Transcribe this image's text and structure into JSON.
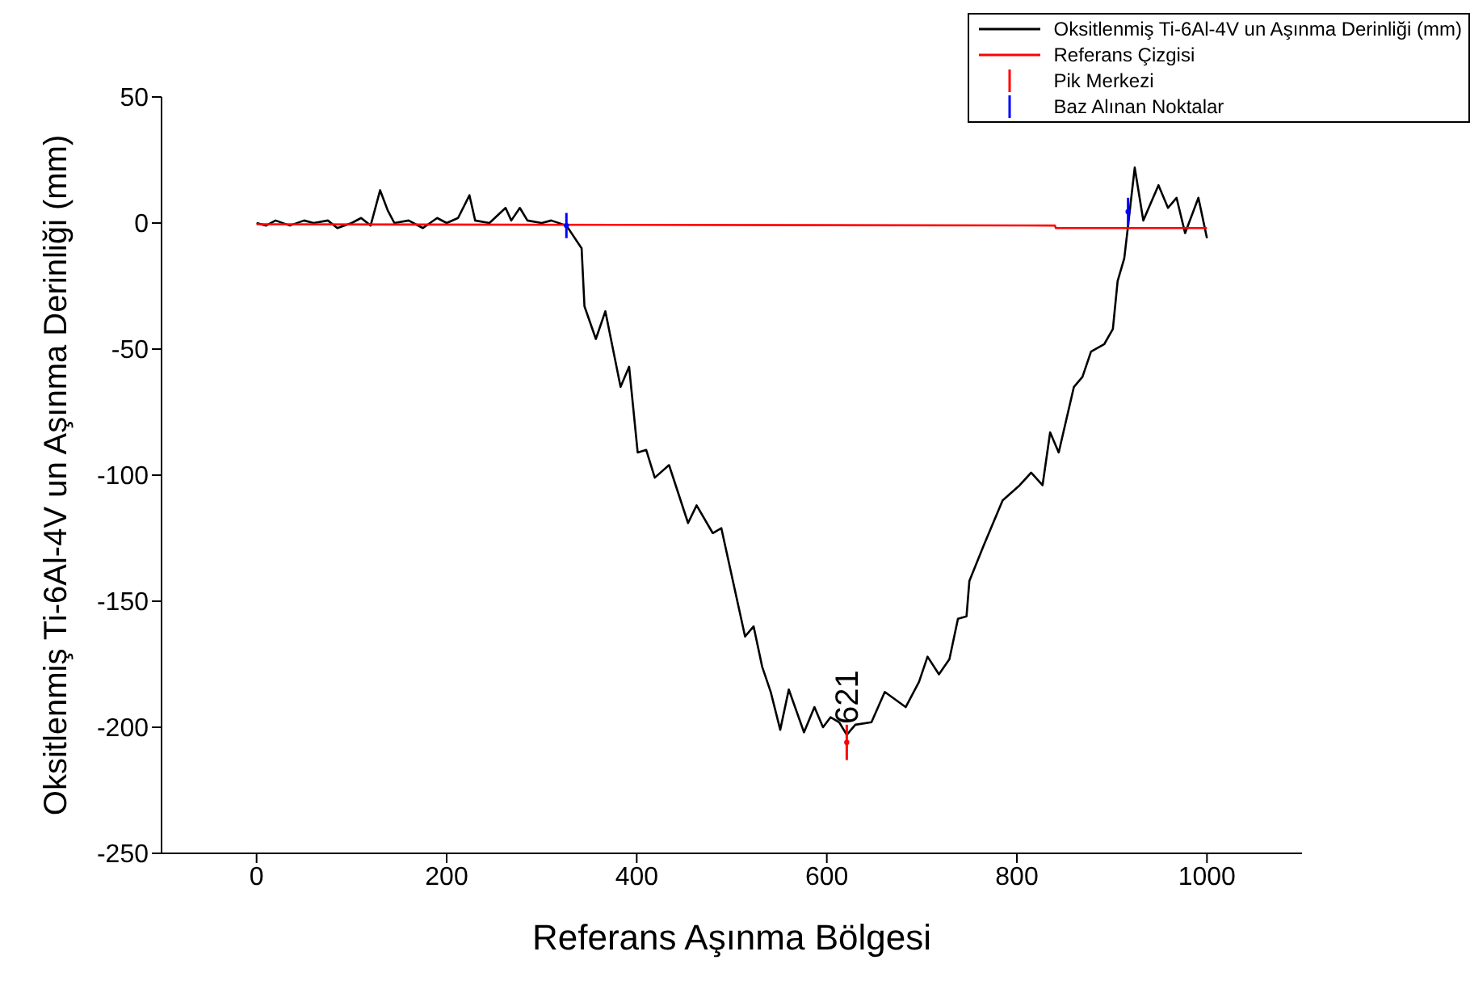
{
  "chart_data": {
    "type": "line",
    "xlabel": "Referans Aşınma Bölgesi",
    "ylabel": "Oksitlenmiş Ti-6Al-4V un Aşınma Derinliği (mm)",
    "xlim": [
      -100,
      1100
    ],
    "xticks": [
      0,
      200,
      400,
      600,
      800,
      1000
    ],
    "ylim": [
      -250,
      50
    ],
    "yticks": [
      50,
      0,
      -50,
      -100,
      -150,
      -200,
      -250
    ],
    "grid": false,
    "legend": "top right",
    "series": [
      {
        "name": "Oksitlenmiş Ti-6Al-4V un Aşınma Derinliği (mm)",
        "color": "#000000",
        "x": [
          0,
          10,
          20,
          35,
          50,
          60,
          75,
          85,
          100,
          110,
          120,
          130,
          138,
          145,
          160,
          175,
          190,
          200,
          212,
          224,
          230,
          245,
          262,
          268,
          277,
          285,
          300,
          310,
          326,
          342,
          345,
          357,
          367,
          383,
          392,
          401,
          410,
          419,
          434,
          454,
          463,
          480,
          489,
          514,
          523,
          532,
          541,
          551,
          560,
          576,
          587,
          596,
          604,
          613,
          621,
          630,
          647,
          661,
          683,
          697,
          706,
          718,
          729,
          738,
          747,
          750,
          765,
          785,
          803,
          815,
          827,
          835,
          844,
          860,
          869,
          878,
          892,
          901,
          906,
          913,
          917,
          924,
          933,
          949,
          959,
          968,
          977,
          991,
          1000
        ],
        "values": [
          0,
          -1,
          1,
          -1,
          1,
          0,
          1,
          -2,
          0,
          2,
          -1,
          13,
          5,
          0,
          1,
          -2,
          2,
          0,
          2,
          11,
          1,
          0,
          6,
          1,
          6,
          1,
          0,
          1,
          -1,
          -10,
          -33,
          -46,
          -35,
          -65,
          -57,
          -91,
          -90,
          -101,
          -96,
          -119,
          -112,
          -123,
          -121,
          -164,
          -160,
          -176,
          -186,
          -201,
          -185,
          -202,
          -192,
          -200,
          -196,
          -198,
          -203,
          -199,
          -198,
          -186,
          -192,
          -182,
          -172,
          -179,
          -173,
          -157,
          -156,
          -142,
          -128,
          -110,
          -104,
          -99,
          -104,
          -83,
          -91,
          -65,
          -61,
          -51,
          -48,
          -42,
          -23,
          -14,
          -1,
          22,
          1,
          15,
          6,
          10,
          -4,
          10,
          -6
        ]
      },
      {
        "name": "Referans Çizgisi",
        "type": "line",
        "color": "#ff0000",
        "x": [
          0,
          840,
          841,
          1000
        ],
        "values": [
          -0.5,
          -1,
          -2,
          -2
        ]
      },
      {
        "name": "Pik Merkezi",
        "type": "scatter",
        "color": "#ff0000",
        "marker": "circle",
        "x": [
          621
        ],
        "values": [
          -206
        ],
        "errors": [
          7
        ]
      },
      {
        "name": "Baz Alınan Noktalar",
        "type": "scatter",
        "color": "#0000ff",
        "marker": "circle",
        "x": [
          326,
          917
        ],
        "values": [
          -1,
          4.5
        ],
        "errors": [
          5,
          5.5
        ]
      }
    ],
    "annotations": [
      {
        "text": "621",
        "x": 621,
        "y": -200
      }
    ]
  }
}
